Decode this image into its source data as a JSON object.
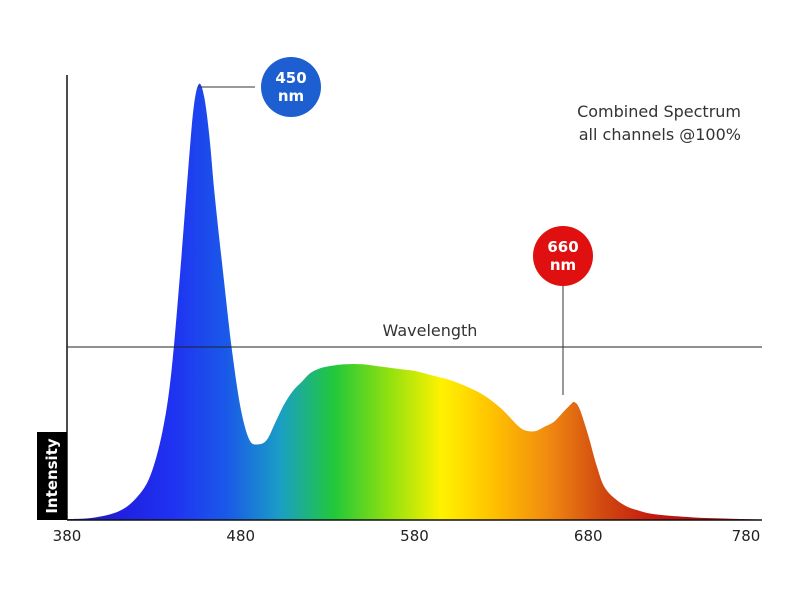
{
  "chart_data": {
    "type": "area",
    "title": "",
    "xlabel": "Wavelength",
    "ylabel": "Intensity",
    "xlim": [
      380,
      780
    ],
    "ylim": [
      0,
      1
    ],
    "x_ticks": [
      "380",
      "480",
      "580",
      "680",
      "780"
    ],
    "grid": false,
    "legend": "none",
    "annotation": {
      "line1": "Combined Spectrum",
      "line2": "all channels @100%"
    },
    "callouts": [
      {
        "value": "450",
        "unit": "nm",
        "color": "#1d5fd0",
        "peak_x": 455,
        "peak_y": 0.98
      },
      {
        "value": "660",
        "unit": "nm",
        "color": "#e01010",
        "peak_x": 672,
        "peak_y": 0.26
      }
    ],
    "series": [
      {
        "x": [
          380,
          395,
          410,
          420,
          428,
          435,
          440,
          445,
          450,
          453,
          456,
          459,
          462,
          465,
          470,
          475,
          480,
          485,
          490,
          495,
          500,
          505,
          510,
          515,
          520,
          525,
          530,
          540,
          550,
          560,
          570,
          580,
          590,
          600,
          610,
          620,
          630,
          640,
          645,
          650,
          655,
          660,
          665,
          670,
          672,
          675,
          680,
          685,
          690,
          700,
          710,
          720,
          740,
          760,
          780
        ],
        "y": [
          0.002,
          0.005,
          0.02,
          0.05,
          0.1,
          0.2,
          0.33,
          0.55,
          0.8,
          0.93,
          0.98,
          0.95,
          0.86,
          0.73,
          0.55,
          0.38,
          0.25,
          0.18,
          0.17,
          0.18,
          0.22,
          0.26,
          0.29,
          0.31,
          0.33,
          0.34,
          0.345,
          0.35,
          0.35,
          0.345,
          0.34,
          0.335,
          0.325,
          0.315,
          0.3,
          0.28,
          0.25,
          0.21,
          0.2,
          0.2,
          0.21,
          0.22,
          0.24,
          0.26,
          0.265,
          0.25,
          0.19,
          0.12,
          0.07,
          0.035,
          0.02,
          0.012,
          0.006,
          0.003,
          0.001
        ]
      }
    ]
  },
  "colors": {
    "spectrum": [
      "#1a1aa0",
      "#2020e0",
      "#1f33f2",
      "#1a5ae8",
      "#1a9fc4",
      "#22c83a",
      "#8ee010",
      "#fff200",
      "#ffc000",
      "#f08a10",
      "#d24a10",
      "#c41810",
      "#a81010",
      "#8a1010"
    ]
  }
}
